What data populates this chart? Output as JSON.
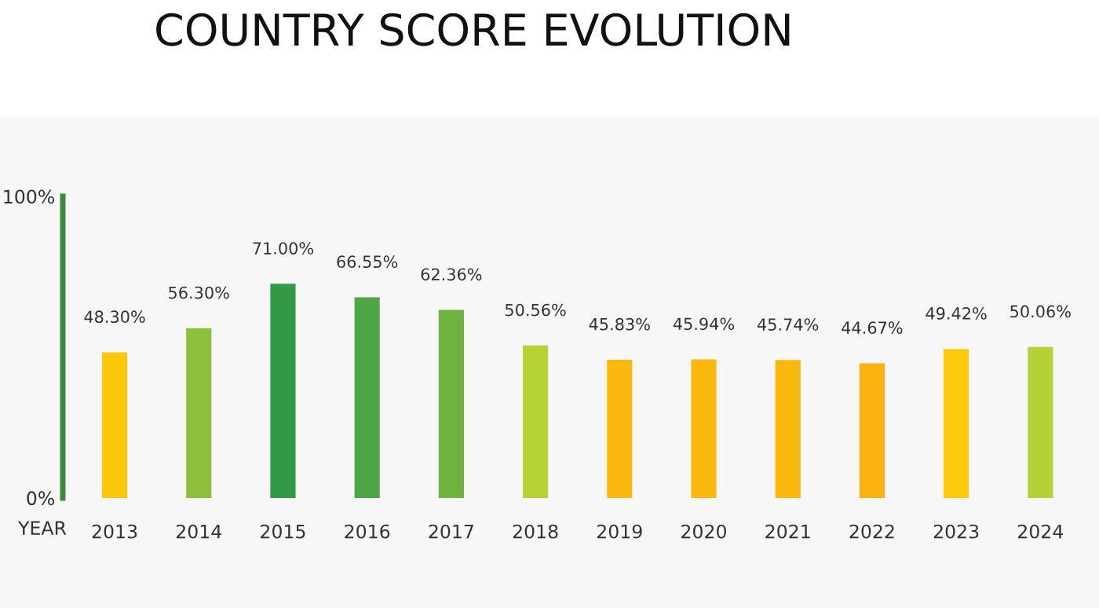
{
  "chart_data": {
    "type": "bar",
    "title": "COUNTRY SCORE EVOLUTION",
    "xlabel": "YEAR",
    "categories": [
      "2013",
      "2014",
      "2015",
      "2016",
      "2017",
      "2018",
      "2019",
      "2020",
      "2021",
      "2022",
      "2023",
      "2024"
    ],
    "values": [
      48.3,
      56.3,
      71.0,
      66.55,
      62.36,
      50.56,
      45.83,
      45.94,
      45.74,
      44.67,
      49.42,
      50.06
    ],
    "value_labels": [
      "48.30%",
      "56.30%",
      "71.00%",
      "66.55%",
      "62.36%",
      "50.56%",
      "45.83%",
      "45.94%",
      "45.74%",
      "44.67%",
      "49.42%",
      "50.06%"
    ],
    "colors": [
      "#fcc80a",
      "#8cc03a",
      "#339944",
      "#4ea646",
      "#6db33f",
      "#b5d334",
      "#fbb80f",
      "#fbb80f",
      "#fbb80f",
      "#f9b20f",
      "#fdcb0b",
      "#b2d235"
    ],
    "ylim": [
      0,
      100
    ],
    "yticks": [
      {
        "value": 0,
        "label": "0%"
      },
      {
        "value": 100,
        "label": "100%"
      }
    ],
    "grid": false,
    "legend": false
  }
}
